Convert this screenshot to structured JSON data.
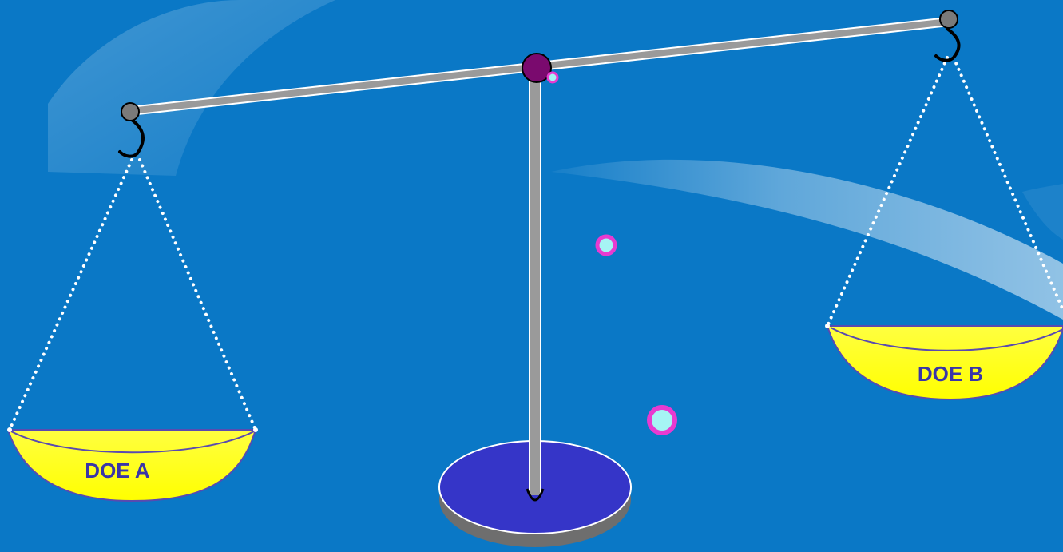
{
  "pans": {
    "left": {
      "label": "DOE A"
    },
    "right": {
      "label": "DOE B"
    }
  },
  "colors": {
    "background": "#0a78c6",
    "beam": "#9a9a9a",
    "pan": "#ffff00",
    "pan_label": "#3a35a8",
    "pivot": "#7a0a6e",
    "base": "#3535c8",
    "hook": "#000000",
    "chain": "#ffffff",
    "bubble_ring": "#e83ad0",
    "bubble_fill": "#a6f4f4"
  },
  "icons": [
    "balance-scale-icon",
    "hook-icon",
    "pivot-icon",
    "bubble-icon"
  ]
}
